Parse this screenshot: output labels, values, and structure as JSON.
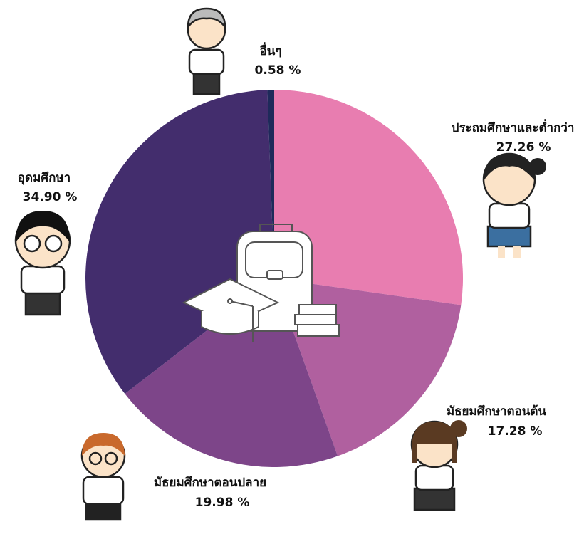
{
  "chart_data": {
    "type": "pie",
    "categories": [
      "ประถมศึกษาและต่ำกว่า",
      "มัธยมศึกษาตอนต้น",
      "มัธยมศึกษาตอนปลาย",
      "อุดมศึกษา",
      "อื่นๆ"
    ],
    "values": [
      27.26,
      17.28,
      19.98,
      34.9,
      0.58
    ],
    "value_labels": [
      "27.26 %",
      "17.28 %",
      "19.98 %",
      "34.90 %",
      "0.58 %"
    ],
    "colors": [
      "#e87db0",
      "#b0609f",
      "#7d4589",
      "#432d6d",
      "#1e2a5a"
    ]
  }
}
